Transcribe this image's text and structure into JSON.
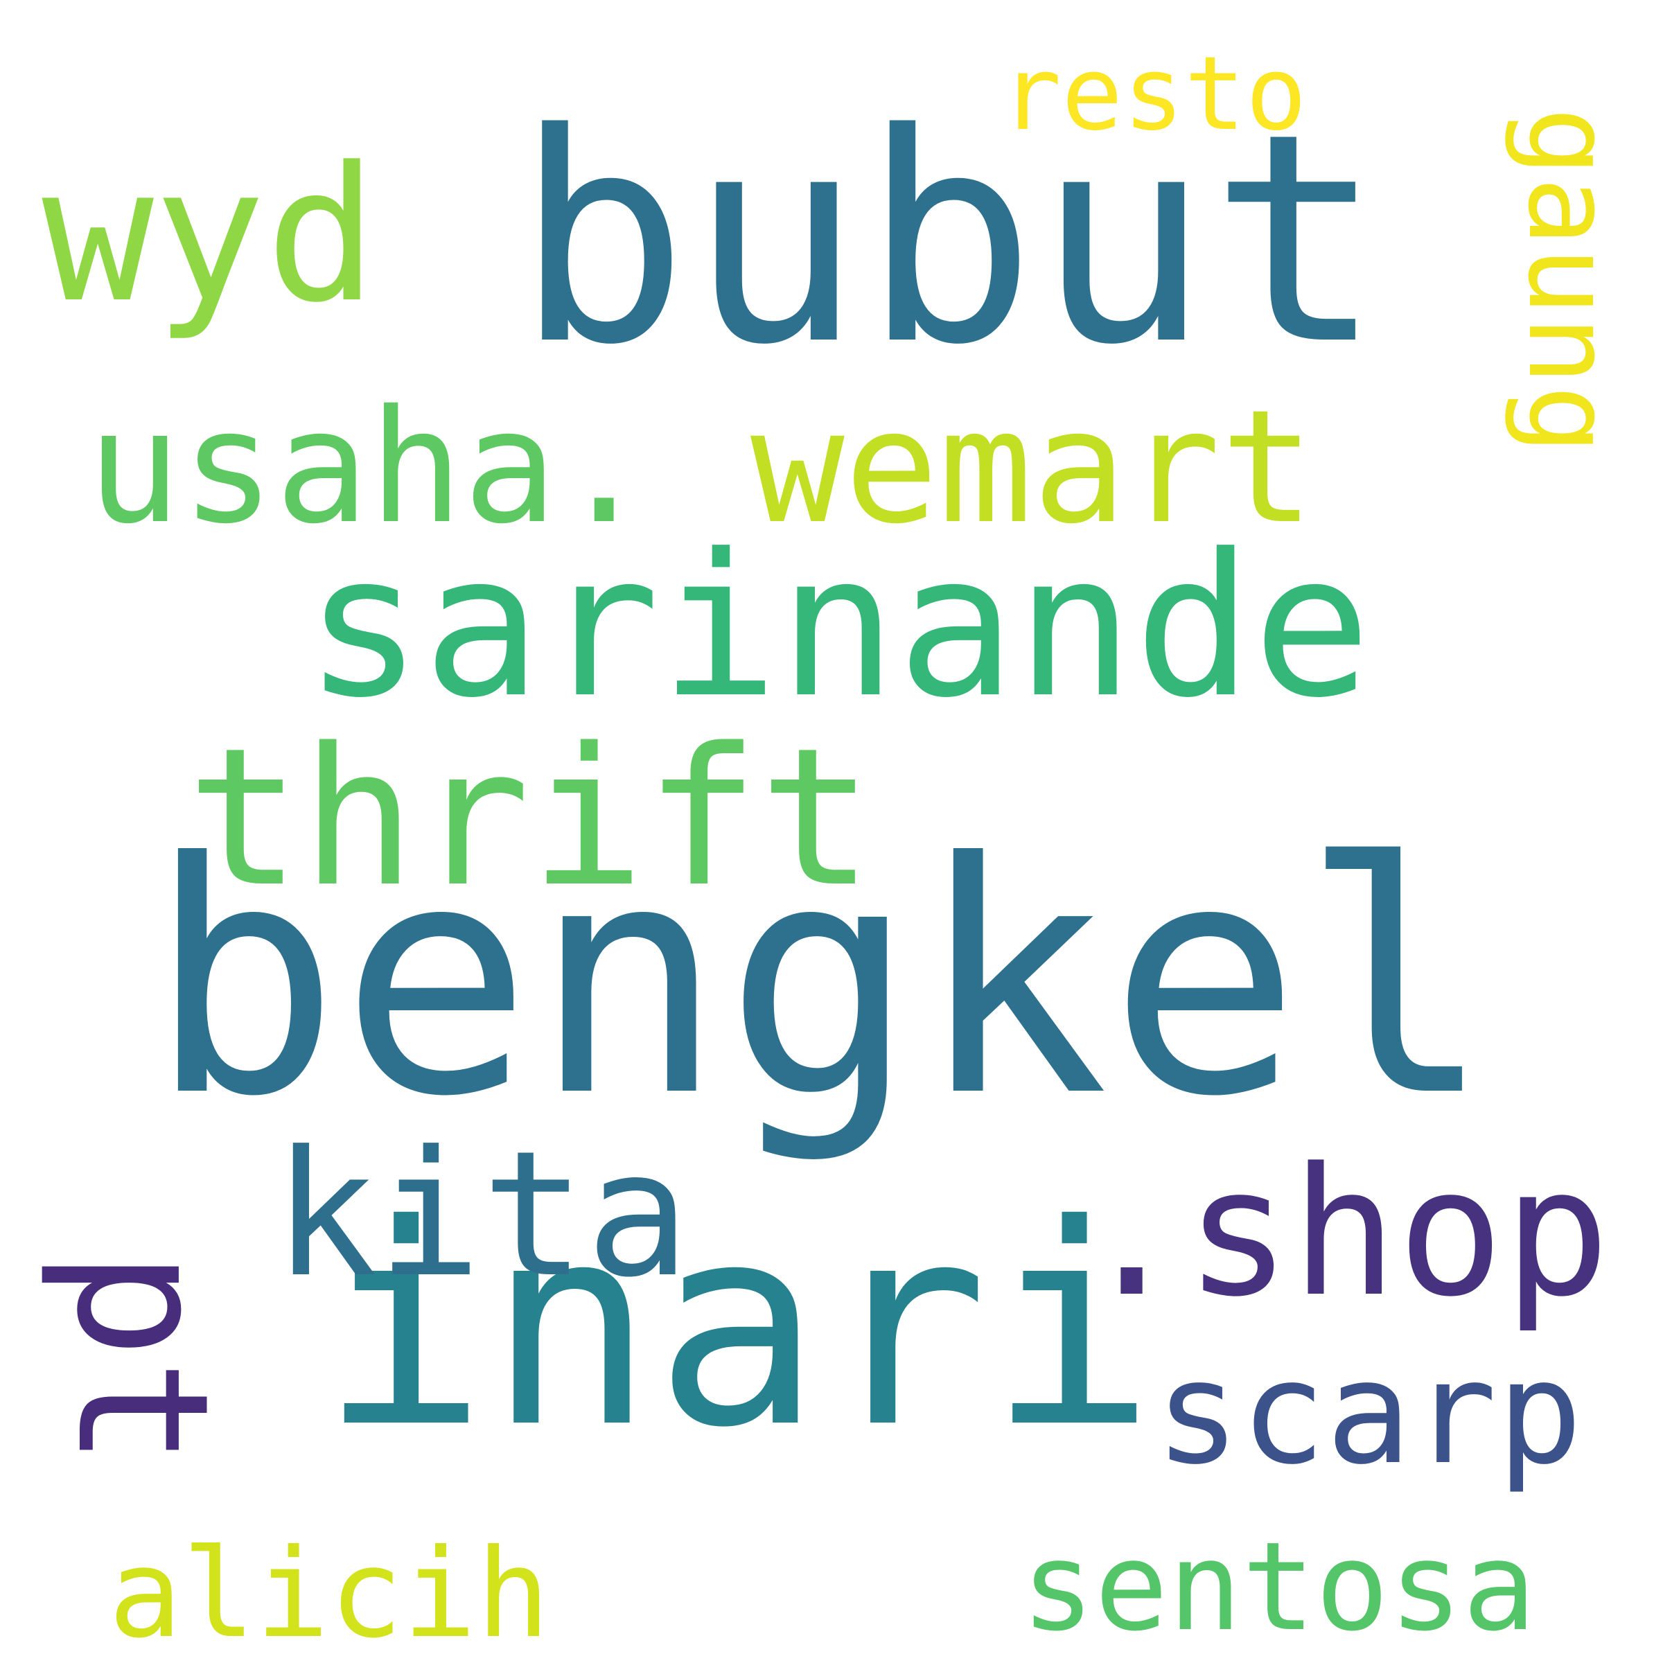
{
  "words": [
    {
      "key": "bengkel",
      "text": "bengkel",
      "color": "#2e718e",
      "orientation": "horizontal"
    },
    {
      "key": "bubut",
      "text": "bubut",
      "color": "#2e718e",
      "orientation": "horizontal"
    },
    {
      "key": "sarinande",
      "text": "sarinande",
      "color": "#35b779",
      "orientation": "horizontal"
    },
    {
      "key": "inari",
      "text": "inari",
      "color": "#26828e",
      "orientation": "horizontal"
    },
    {
      "key": "thrift",
      "text": "thrift",
      "color": "#5ec962",
      "orientation": "horizontal"
    },
    {
      "key": "usaha",
      "text": "usaha.",
      "color": "#5ec962",
      "orientation": "horizontal"
    },
    {
      "key": "wemart",
      "text": "wemart",
      "color": "#c2df23",
      "orientation": "horizontal"
    },
    {
      "key": "shop",
      "text": ".shop",
      "color": "#46327e",
      "orientation": "horizontal"
    },
    {
      "key": "kita",
      "text": "kita",
      "color": "#2e6f8e",
      "orientation": "horizontal"
    },
    {
      "key": "wyd",
      "text": "wyd",
      "color": "#8fd744",
      "orientation": "horizontal"
    },
    {
      "key": "resto",
      "text": "resto",
      "color": "#fde725",
      "orientation": "horizontal"
    },
    {
      "key": "gaung",
      "text": "gaung",
      "color": "#f1e51d",
      "orientation": "vertical"
    },
    {
      "key": "pt",
      "text": "pt",
      "color": "#472d7b",
      "orientation": "vertical"
    },
    {
      "key": "scarp",
      "text": "scarp",
      "color": "#3b528b",
      "orientation": "horizontal"
    },
    {
      "key": "alicih",
      "text": "alicih",
      "color": "#d2e21b",
      "orientation": "horizontal"
    },
    {
      "key": "sentosa",
      "text": "sentosa",
      "color": "#54c568",
      "orientation": "horizontal"
    }
  ]
}
